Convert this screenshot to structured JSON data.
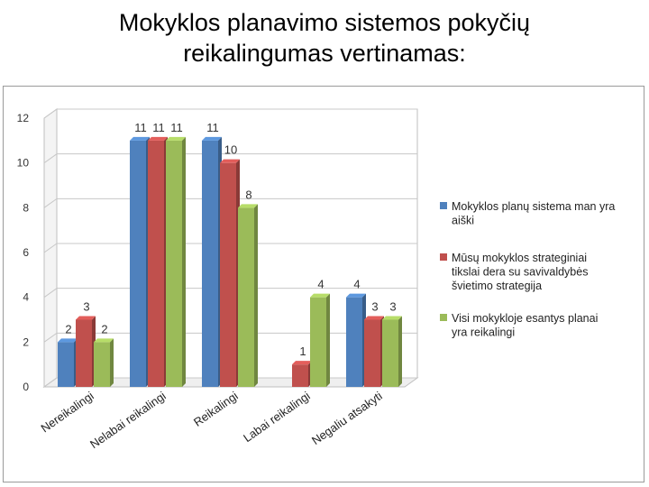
{
  "title_line1": "Mokyklos planavimo sistemos pokyčių",
  "title_line2": "reikalingumas vertinamas:",
  "chart_data": {
    "type": "bar",
    "categories": [
      "Nereikalingi",
      "Nelabai reikalingi",
      "Reikalingi",
      "Labai reikalingi",
      "Negaliu atsakyti"
    ],
    "series": [
      {
        "name": "Mokyklos planų sistema man yra aiški",
        "values": [
          2,
          11,
          11,
          0,
          4
        ],
        "color": "#4f81bd"
      },
      {
        "name": "Mūsų mokyklos strateginiai tikslai dera su savivaldybės švietimo strategija",
        "values": [
          3,
          11,
          10,
          1,
          3
        ],
        "color": "#c0504d"
      },
      {
        "name": "Visi mokykloje esantys planai yra reikalingi",
        "values": [
          2,
          11,
          8,
          4,
          3
        ],
        "color": "#9bbb59"
      }
    ],
    "yticks": [
      0,
      2,
      4,
      6,
      8,
      10,
      12
    ],
    "ylim": [
      0,
      12
    ],
    "legend_position": "right",
    "style": "3d-clustered-column"
  }
}
